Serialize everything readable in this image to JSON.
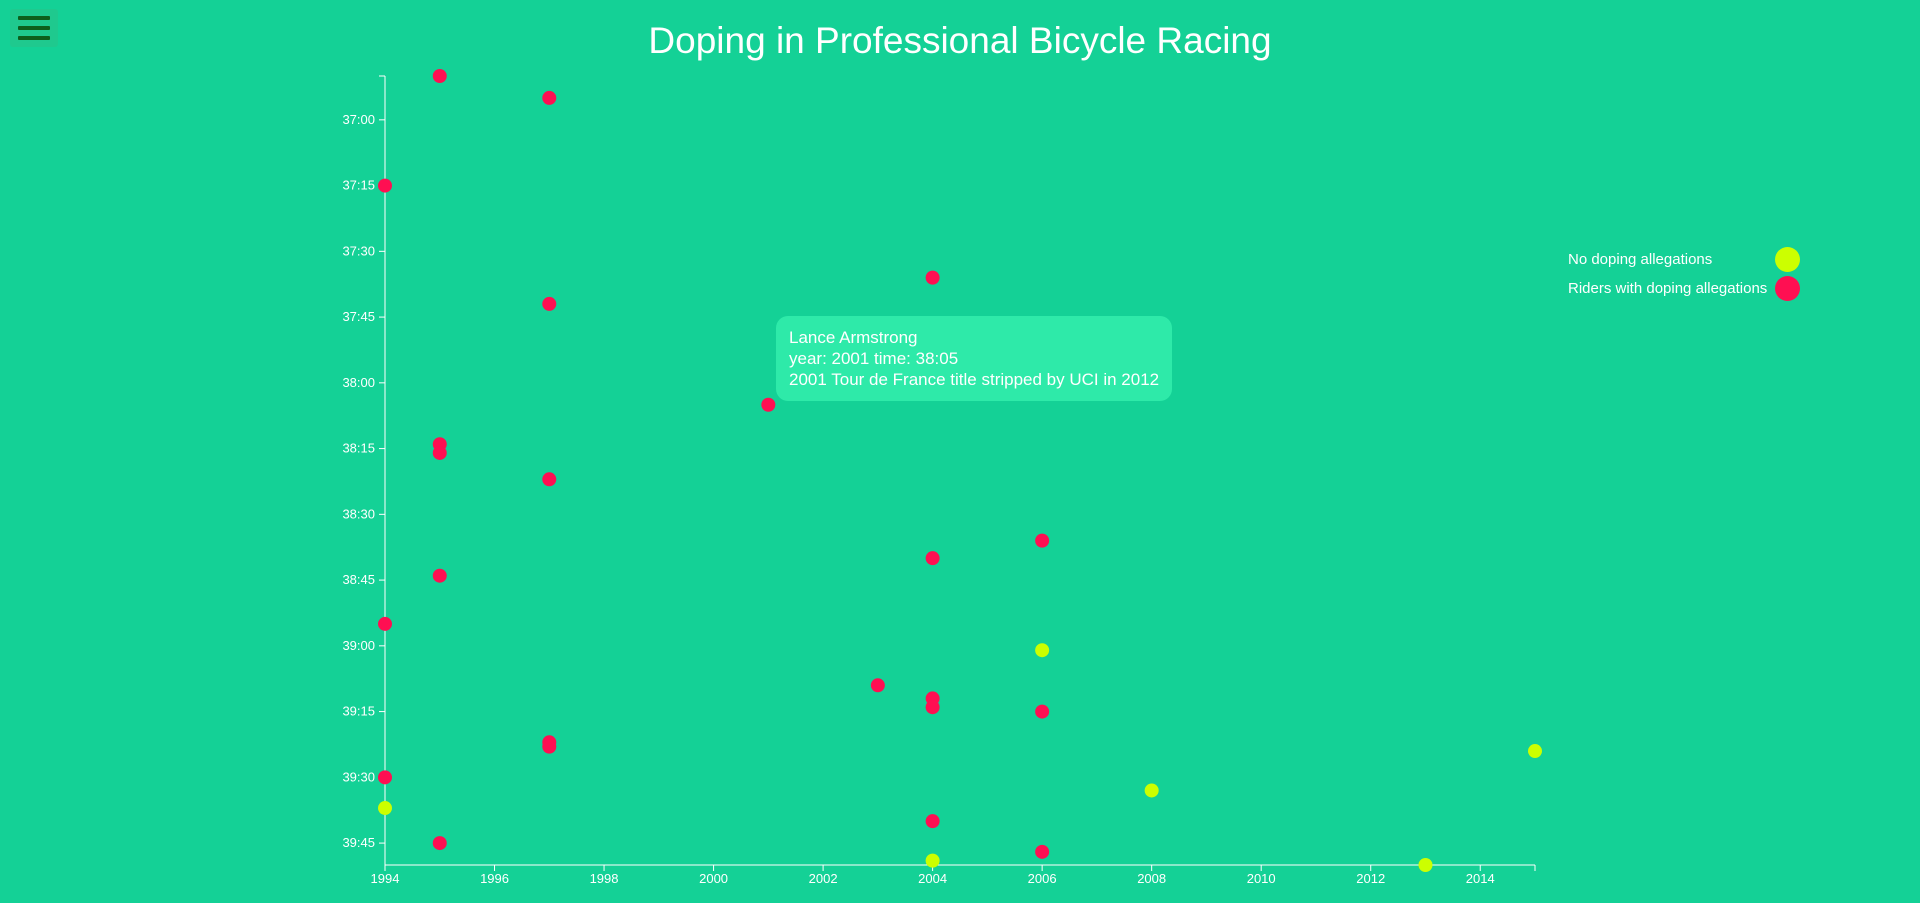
{
  "menu": {
    "icon": "hamburger-icon"
  },
  "colors": {
    "background": "#14d196",
    "clean": "#ccff00",
    "doping": "#ff0f52",
    "axis": "#ffffff",
    "tooltip_bg": "#2eeaa9"
  },
  "legend": {
    "placement": "top-right",
    "items": [
      {
        "label": "No doping allegations",
        "color": "#ccff00"
      },
      {
        "label": "Riders with doping allegations",
        "color": "#ff0f52"
      }
    ]
  },
  "tooltip": {
    "name": "Lance Armstrong",
    "line2": "year: 2001 time: 38:05",
    "line3": "2001 Tour de France title stripped by UCI in 2012"
  },
  "chart_data": {
    "type": "scatter",
    "title": "Doping in Professional Bicycle Racing",
    "xlabel": "",
    "ylabel": "",
    "xlim": [
      1994,
      2015
    ],
    "ylim": [
      "36:50",
      "39:50"
    ],
    "grid": false,
    "x_ticks": [
      "1994",
      "1996",
      "1998",
      "2000",
      "2002",
      "2004",
      "2006",
      "2008",
      "2010",
      "2012",
      "2014"
    ],
    "y_ticks": [
      "37:00",
      "37:15",
      "37:30",
      "37:45",
      "38:00",
      "38:15",
      "38:30",
      "38:45",
      "39:00",
      "39:15",
      "39:30",
      "39:45"
    ],
    "series": [
      {
        "name": "No doping allegations",
        "color": "#ccff00",
        "points": [
          {
            "x": 1994,
            "y": "39:37"
          },
          {
            "x": 2004,
            "y": "39:49"
          },
          {
            "x": 2006,
            "y": "39:01"
          },
          {
            "x": 2008,
            "y": "39:33"
          },
          {
            "x": 2013,
            "y": "39:50"
          },
          {
            "x": 2015,
            "y": "39:24"
          }
        ]
      },
      {
        "name": "Riders with doping allegations",
        "color": "#ff0f52",
        "points": [
          {
            "x": 1995,
            "y": "36:50"
          },
          {
            "x": 1997,
            "y": "36:55"
          },
          {
            "x": 1994,
            "y": "37:15"
          },
          {
            "x": 2004,
            "y": "37:36"
          },
          {
            "x": 1997,
            "y": "37:42"
          },
          {
            "x": 2001,
            "y": "38:05"
          },
          {
            "x": 1995,
            "y": "38:14"
          },
          {
            "x": 1995,
            "y": "38:16"
          },
          {
            "x": 1997,
            "y": "38:22"
          },
          {
            "x": 2006,
            "y": "38:36"
          },
          {
            "x": 2004,
            "y": "38:40"
          },
          {
            "x": 1995,
            "y": "38:44"
          },
          {
            "x": 1994,
            "y": "38:55"
          },
          {
            "x": 2003,
            "y": "39:09"
          },
          {
            "x": 2004,
            "y": "39:12"
          },
          {
            "x": 2004,
            "y": "39:14"
          },
          {
            "x": 2006,
            "y": "39:15"
          },
          {
            "x": 1997,
            "y": "39:22"
          },
          {
            "x": 1997,
            "y": "39:23"
          },
          {
            "x": 1994,
            "y": "39:30"
          },
          {
            "x": 2004,
            "y": "39:40"
          },
          {
            "x": 1995,
            "y": "39:45"
          },
          {
            "x": 2006,
            "y": "39:47"
          }
        ]
      }
    ]
  }
}
